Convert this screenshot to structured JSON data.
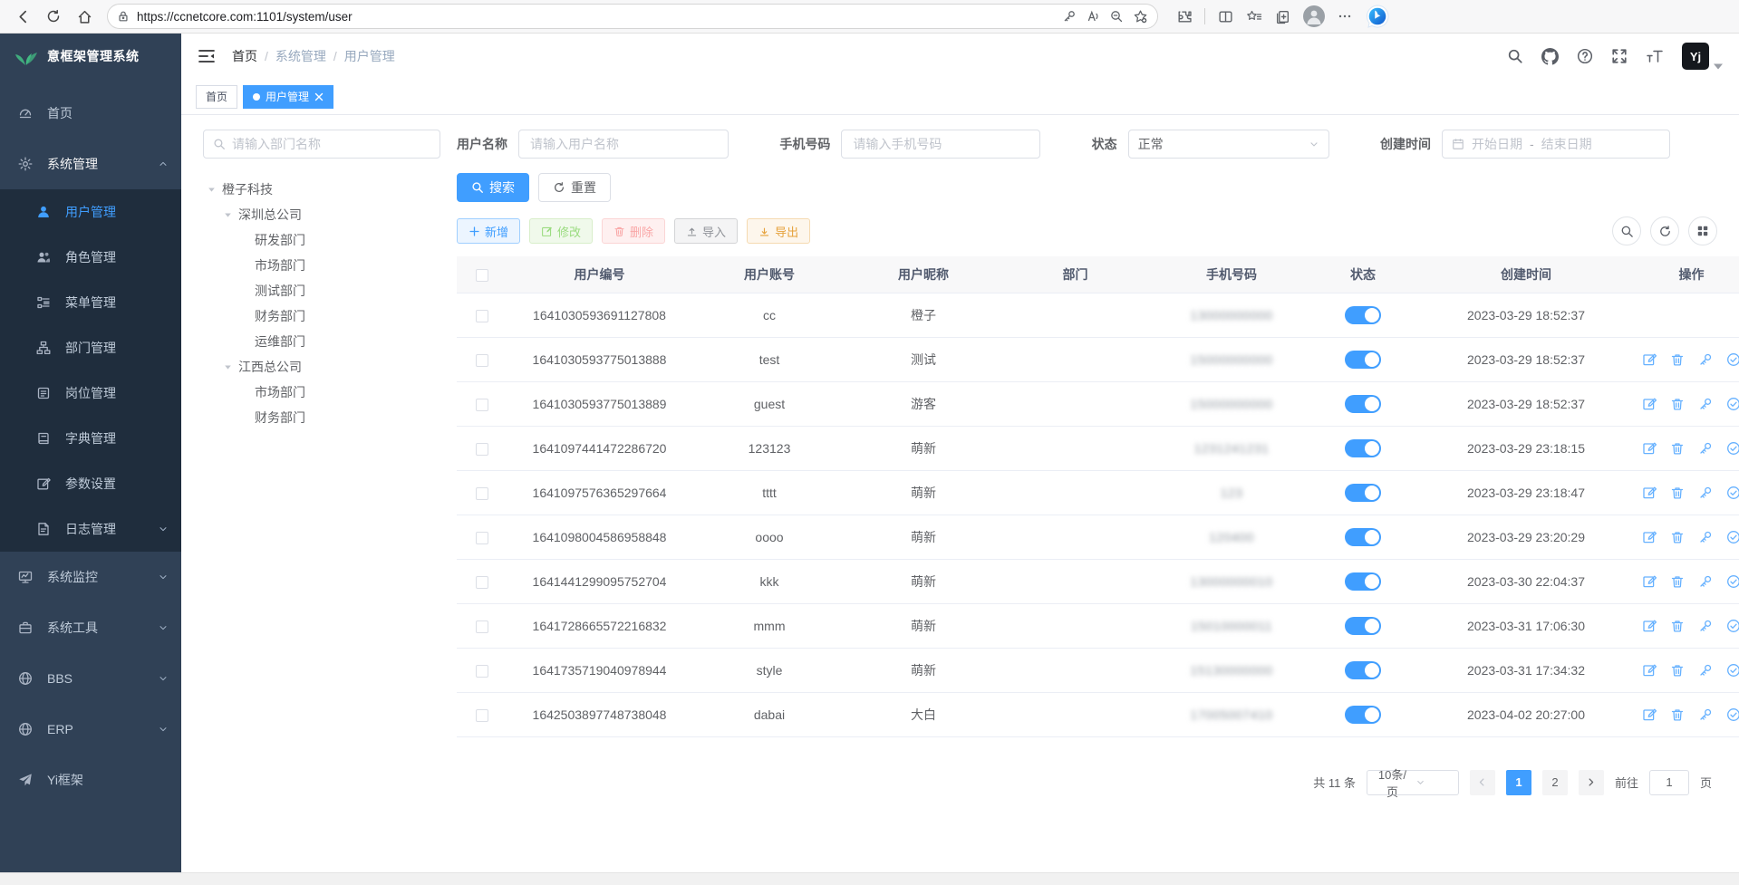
{
  "colors": {
    "accent": "#409eff",
    "sidebar_bg": "#304156",
    "submenu_bg": "#1f2d3d",
    "toggle_on": "#409eff",
    "tab_active_bg": "#409eff",
    "logo_green": "#42b983"
  },
  "browser": {
    "url": "https://ccnetcore.com:1101/system/user"
  },
  "sidebar": {
    "logo_title": "意框架管理系统",
    "items": [
      {
        "label": "首页",
        "slug": "home",
        "icon": "dashboard-icon"
      },
      {
        "label": "系统管理",
        "slug": "system-management",
        "icon": "gear-icon",
        "type": "group-open",
        "children": [
          {
            "label": "用户管理",
            "slug": "user-management",
            "icon": "user-icon",
            "active": true
          },
          {
            "label": "角色管理",
            "slug": "role-management",
            "icon": "peoples-icon"
          },
          {
            "label": "菜单管理",
            "slug": "menu-management",
            "icon": "tree-table-icon"
          },
          {
            "label": "部门管理",
            "slug": "dept-management",
            "icon": "tree-icon"
          },
          {
            "label": "岗位管理",
            "slug": "post-management",
            "icon": "post-icon"
          },
          {
            "label": "字典管理",
            "slug": "dict-management",
            "icon": "dict-icon"
          },
          {
            "label": "参数设置",
            "slug": "param-settings",
            "icon": "edit-icon"
          },
          {
            "label": "日志管理",
            "slug": "log-management",
            "icon": "log-icon",
            "expandable": true
          }
        ]
      },
      {
        "label": "系统监控",
        "slug": "system-monitor",
        "icon": "monitor-icon",
        "expandable": true
      },
      {
        "label": "系统工具",
        "slug": "system-tools",
        "icon": "tool-icon",
        "expandable": true
      },
      {
        "label": "BBS",
        "slug": "bbs",
        "icon": "globe-icon",
        "expandable": true
      },
      {
        "label": "ERP",
        "slug": "erp",
        "icon": "globe-icon",
        "expandable": true
      },
      {
        "label": "Yi框架",
        "slug": "yi-framework",
        "icon": "guide-icon"
      }
    ]
  },
  "navbar": {
    "breadcrumb": [
      "首页",
      "系统管理",
      "用户管理"
    ],
    "separator": "/",
    "avatar_text": "Yj"
  },
  "tabs": {
    "home": "首页",
    "active_label": "用户管理"
  },
  "filters": {
    "username_label": "用户名称",
    "username_placeholder": "请输入用户名称",
    "phone_label": "手机号码",
    "phone_placeholder": "请输入手机号码",
    "status_label": "状态",
    "status_value": "正常",
    "created_label": "创建时间",
    "date_start": "开始日期",
    "date_sep": "-",
    "date_end": "结束日期",
    "search_label": "搜索",
    "reset_label": "重置"
  },
  "tree": {
    "search_placeholder": "请输入部门名称",
    "nodes": [
      {
        "label": "橙子科技",
        "level": 0,
        "caret": true
      },
      {
        "label": "深圳总公司",
        "level": 1,
        "caret": true
      },
      {
        "label": "研发部门",
        "level": 2
      },
      {
        "label": "市场部门",
        "level": 2
      },
      {
        "label": "测试部门",
        "level": 2
      },
      {
        "label": "财务部门",
        "level": 2
      },
      {
        "label": "运维部门",
        "level": 2
      },
      {
        "label": "江西总公司",
        "level": 1,
        "caret": true
      },
      {
        "label": "市场部门",
        "level": 2
      },
      {
        "label": "财务部门",
        "level": 2
      }
    ]
  },
  "toolbar": {
    "add": "新增",
    "modify": "修改",
    "delete": "删除",
    "import": "导入",
    "export": "导出"
  },
  "table": {
    "columns": [
      "用户编号",
      "用户账号",
      "用户昵称",
      "部门",
      "手机号码",
      "状态",
      "创建时间",
      "操作"
    ],
    "rows": [
      {
        "id": "1641030593691127808",
        "account": "cc",
        "nickname": "橙子",
        "dept": "",
        "phone": "13000000000",
        "status": true,
        "created": "2023-03-29 18:52:37",
        "actions": false
      },
      {
        "id": "1641030593775013888",
        "account": "test",
        "nickname": "测试",
        "dept": "",
        "phone": "15000000000",
        "status": true,
        "created": "2023-03-29 18:52:37",
        "actions": true
      },
      {
        "id": "1641030593775013889",
        "account": "guest",
        "nickname": "游客",
        "dept": "",
        "phone": "15000000000",
        "status": true,
        "created": "2023-03-29 18:52:37",
        "actions": true
      },
      {
        "id": "1641097441472286720",
        "account": "123123",
        "nickname": "萌新",
        "dept": "",
        "phone": "1231241231",
        "status": true,
        "created": "2023-03-29 23:18:15",
        "actions": true
      },
      {
        "id": "1641097576365297664",
        "account": "tttt",
        "nickname": "萌新",
        "dept": "",
        "phone": "123",
        "status": true,
        "created": "2023-03-29 23:18:47",
        "actions": true
      },
      {
        "id": "1641098004586958848",
        "account": "oooo",
        "nickname": "萌新",
        "dept": "",
        "phone": "120400",
        "status": true,
        "created": "2023-03-29 23:20:29",
        "actions": true
      },
      {
        "id": "1641441299095752704",
        "account": "kkk",
        "nickname": "萌新",
        "dept": "",
        "phone": "13000000010",
        "status": true,
        "created": "2023-03-30 22:04:37",
        "actions": true
      },
      {
        "id": "1641728665572216832",
        "account": "mmm",
        "nickname": "萌新",
        "dept": "",
        "phone": "15010000011",
        "status": true,
        "created": "2023-03-31 17:06:30",
        "actions": true
      },
      {
        "id": "1641735719040978944",
        "account": "style",
        "nickname": "萌新",
        "dept": "",
        "phone": "15130000000",
        "status": true,
        "created": "2023-03-31 17:34:32",
        "actions": true
      },
      {
        "id": "1642503897748738048",
        "account": "dabai",
        "nickname": "大白",
        "dept": "",
        "phone": "17005007410",
        "status": true,
        "created": "2023-04-02 20:27:00",
        "actions": true
      }
    ]
  },
  "pagination": {
    "total": "共 11 条",
    "page_size": "10条/页",
    "pages": [
      "1",
      "2"
    ],
    "active_page": "1",
    "goto_label": "前往",
    "goto_value": "1",
    "goto_unit": "页"
  }
}
